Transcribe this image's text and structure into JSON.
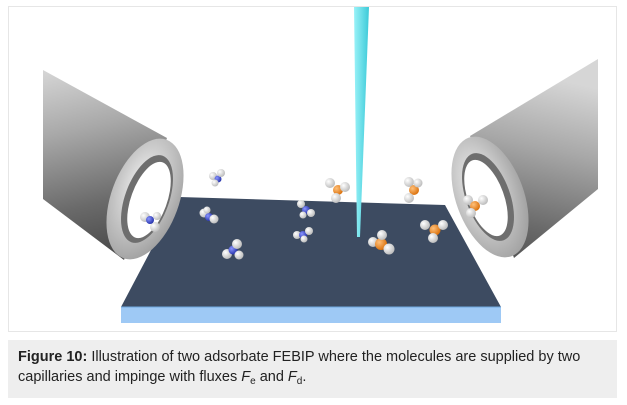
{
  "figure": {
    "caption_label": "Figure 10:",
    "caption_text_1": " Illustration of two adsorbate FEBIP where the molecules are supplied by two capillaries and impinge with fluxes ",
    "flux_e_var": "F",
    "flux_e_sub": "e",
    "caption_and": " and ",
    "flux_d_var": "F",
    "flux_d_sub": "d",
    "caption_end": "."
  },
  "colors": {
    "substrate_top": "#3d4b61",
    "substrate_edge": "#9ec9f5",
    "beam": "#6fe3ee",
    "capillary_steel": "#8a8a8a",
    "hydrogen": "#f2f2f2",
    "nitrogen": "#3a47c8",
    "phosphorus": "#f08a1c"
  },
  "icons": {
    "left_capillary": "capillary-tube-icon",
    "right_capillary": "capillary-tube-icon",
    "beam": "electron-beam-icon",
    "molecules": "molecule-icon"
  }
}
